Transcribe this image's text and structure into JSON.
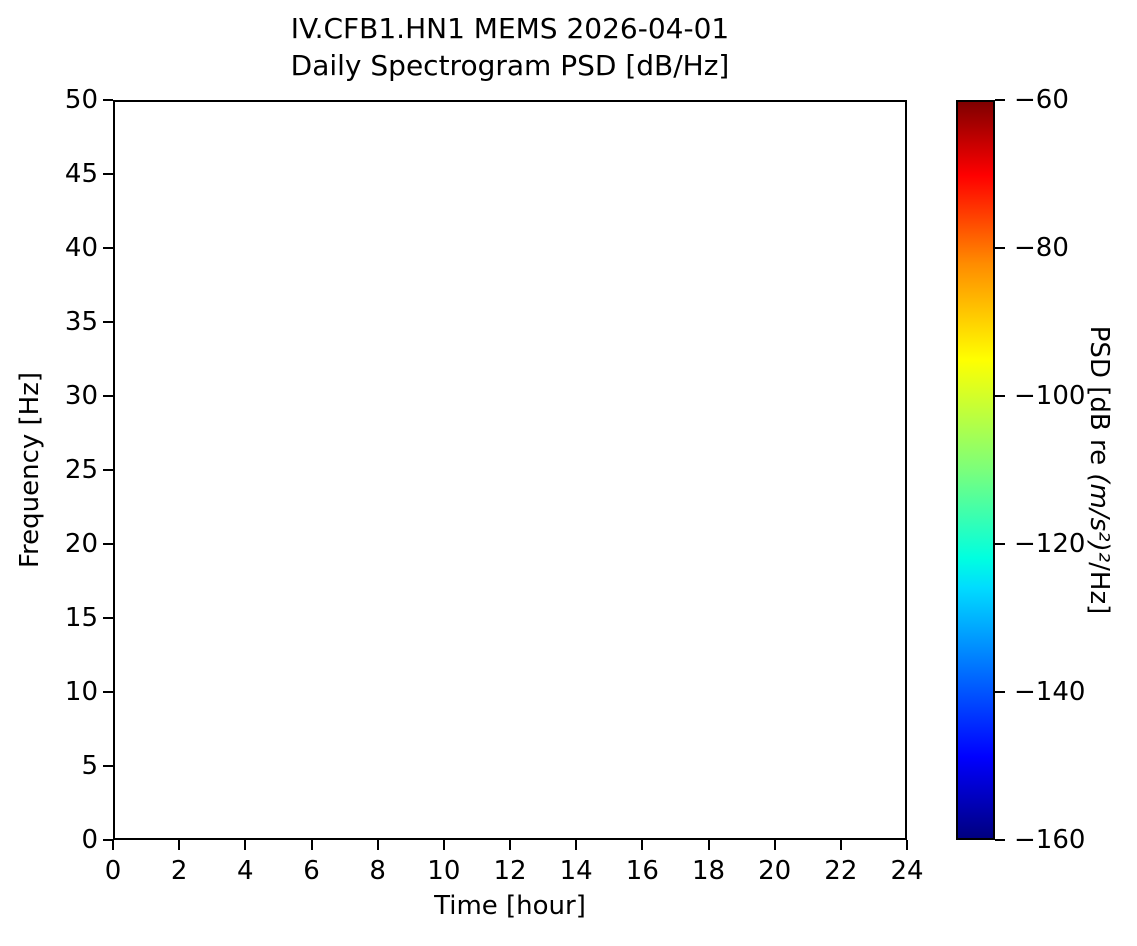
{
  "chart_data": {
    "type": "heatmap",
    "title_line1": "IV.CFB1.HN1 MEMS 2026-04-01",
    "title_line2": "Daily Spectrogram PSD [dB/Hz]",
    "station": "IV.CFB1.HN1",
    "sensor": "MEMS",
    "date": "2026-04-01",
    "xlabel": "Time [hour]",
    "ylabel": "Frequency [Hz]",
    "xlim": [
      0,
      24
    ],
    "ylim": [
      0,
      50
    ],
    "xticks": [
      0,
      2,
      4,
      6,
      8,
      10,
      12,
      14,
      16,
      18,
      20,
      22,
      24
    ],
    "yticks": [
      0,
      5,
      10,
      15,
      20,
      25,
      30,
      35,
      40,
      45,
      50
    ],
    "grid": false,
    "legend": null,
    "values": [],
    "empty_plot": true,
    "plot_background_color": "#ffffff",
    "axis_color": "#000000",
    "colorbar": {
      "label_full": "PSD [dB re (m/s²)²/Hz]",
      "label_prefix": "PSD [dB re ",
      "label_math": "(m/s²)²",
      "label_suffix": "/Hz]",
      "tick_labels": [
        "−60",
        "−80",
        "−100",
        "−120",
        "−140",
        "−160"
      ],
      "tick_values": [
        -60,
        -80,
        -100,
        -120,
        -140,
        -160
      ],
      "vmin": -160,
      "vmax": -60,
      "colormap": "jet",
      "gradient_stops_top_to_bottom": [
        {
          "color": "#800000",
          "pct": 0
        },
        {
          "color": "#ff0000",
          "pct": 10
        },
        {
          "color": "#ff8c00",
          "pct": 22
        },
        {
          "color": "#ffff00",
          "pct": 35
        },
        {
          "color": "#7bff7b",
          "pct": 50
        },
        {
          "color": "#00ffe0",
          "pct": 62
        },
        {
          "color": "#00dcff",
          "pct": 66
        },
        {
          "color": "#0000ff",
          "pct": 89
        },
        {
          "color": "#000080",
          "pct": 100
        }
      ]
    }
  }
}
